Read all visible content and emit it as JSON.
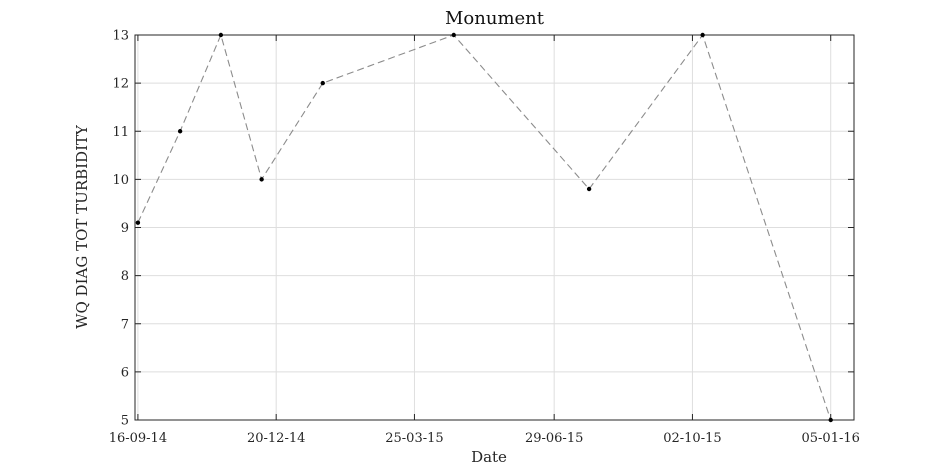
{
  "chart_data": {
    "type": "line",
    "title": "Monument",
    "xlabel": "Date",
    "ylabel": "WQ DIAG TOT TURBIDITY",
    "x": [
      "2014-09-16",
      "2014-10-15",
      "2014-11-12",
      "2014-12-10",
      "2015-01-21",
      "2015-04-21",
      "2015-07-23",
      "2015-10-09",
      "2016-01-05"
    ],
    "series": [
      {
        "values": [
          9.1,
          11.0,
          13.0,
          10.0,
          12.0,
          13.0,
          9.8,
          13.0,
          5.0
        ]
      }
    ],
    "xticks": [
      "16-09-14",
      "20-12-14",
      "25-03-15",
      "29-06-15",
      "02-10-15",
      "05-01-16"
    ],
    "xtick_dates": [
      "2014-09-16",
      "2014-12-20",
      "2015-03-25",
      "2015-06-29",
      "2015-10-02",
      "2016-01-05"
    ],
    "xlim": [
      "2014-09-14",
      "2016-01-21"
    ],
    "ylim": [
      5,
      13
    ],
    "yticks": [
      5,
      6,
      7,
      8,
      9,
      10,
      11,
      12,
      13
    ],
    "grid": true,
    "line_style": "dashed",
    "line_color": "#8c8c8c",
    "marker_color": "#000000"
  }
}
